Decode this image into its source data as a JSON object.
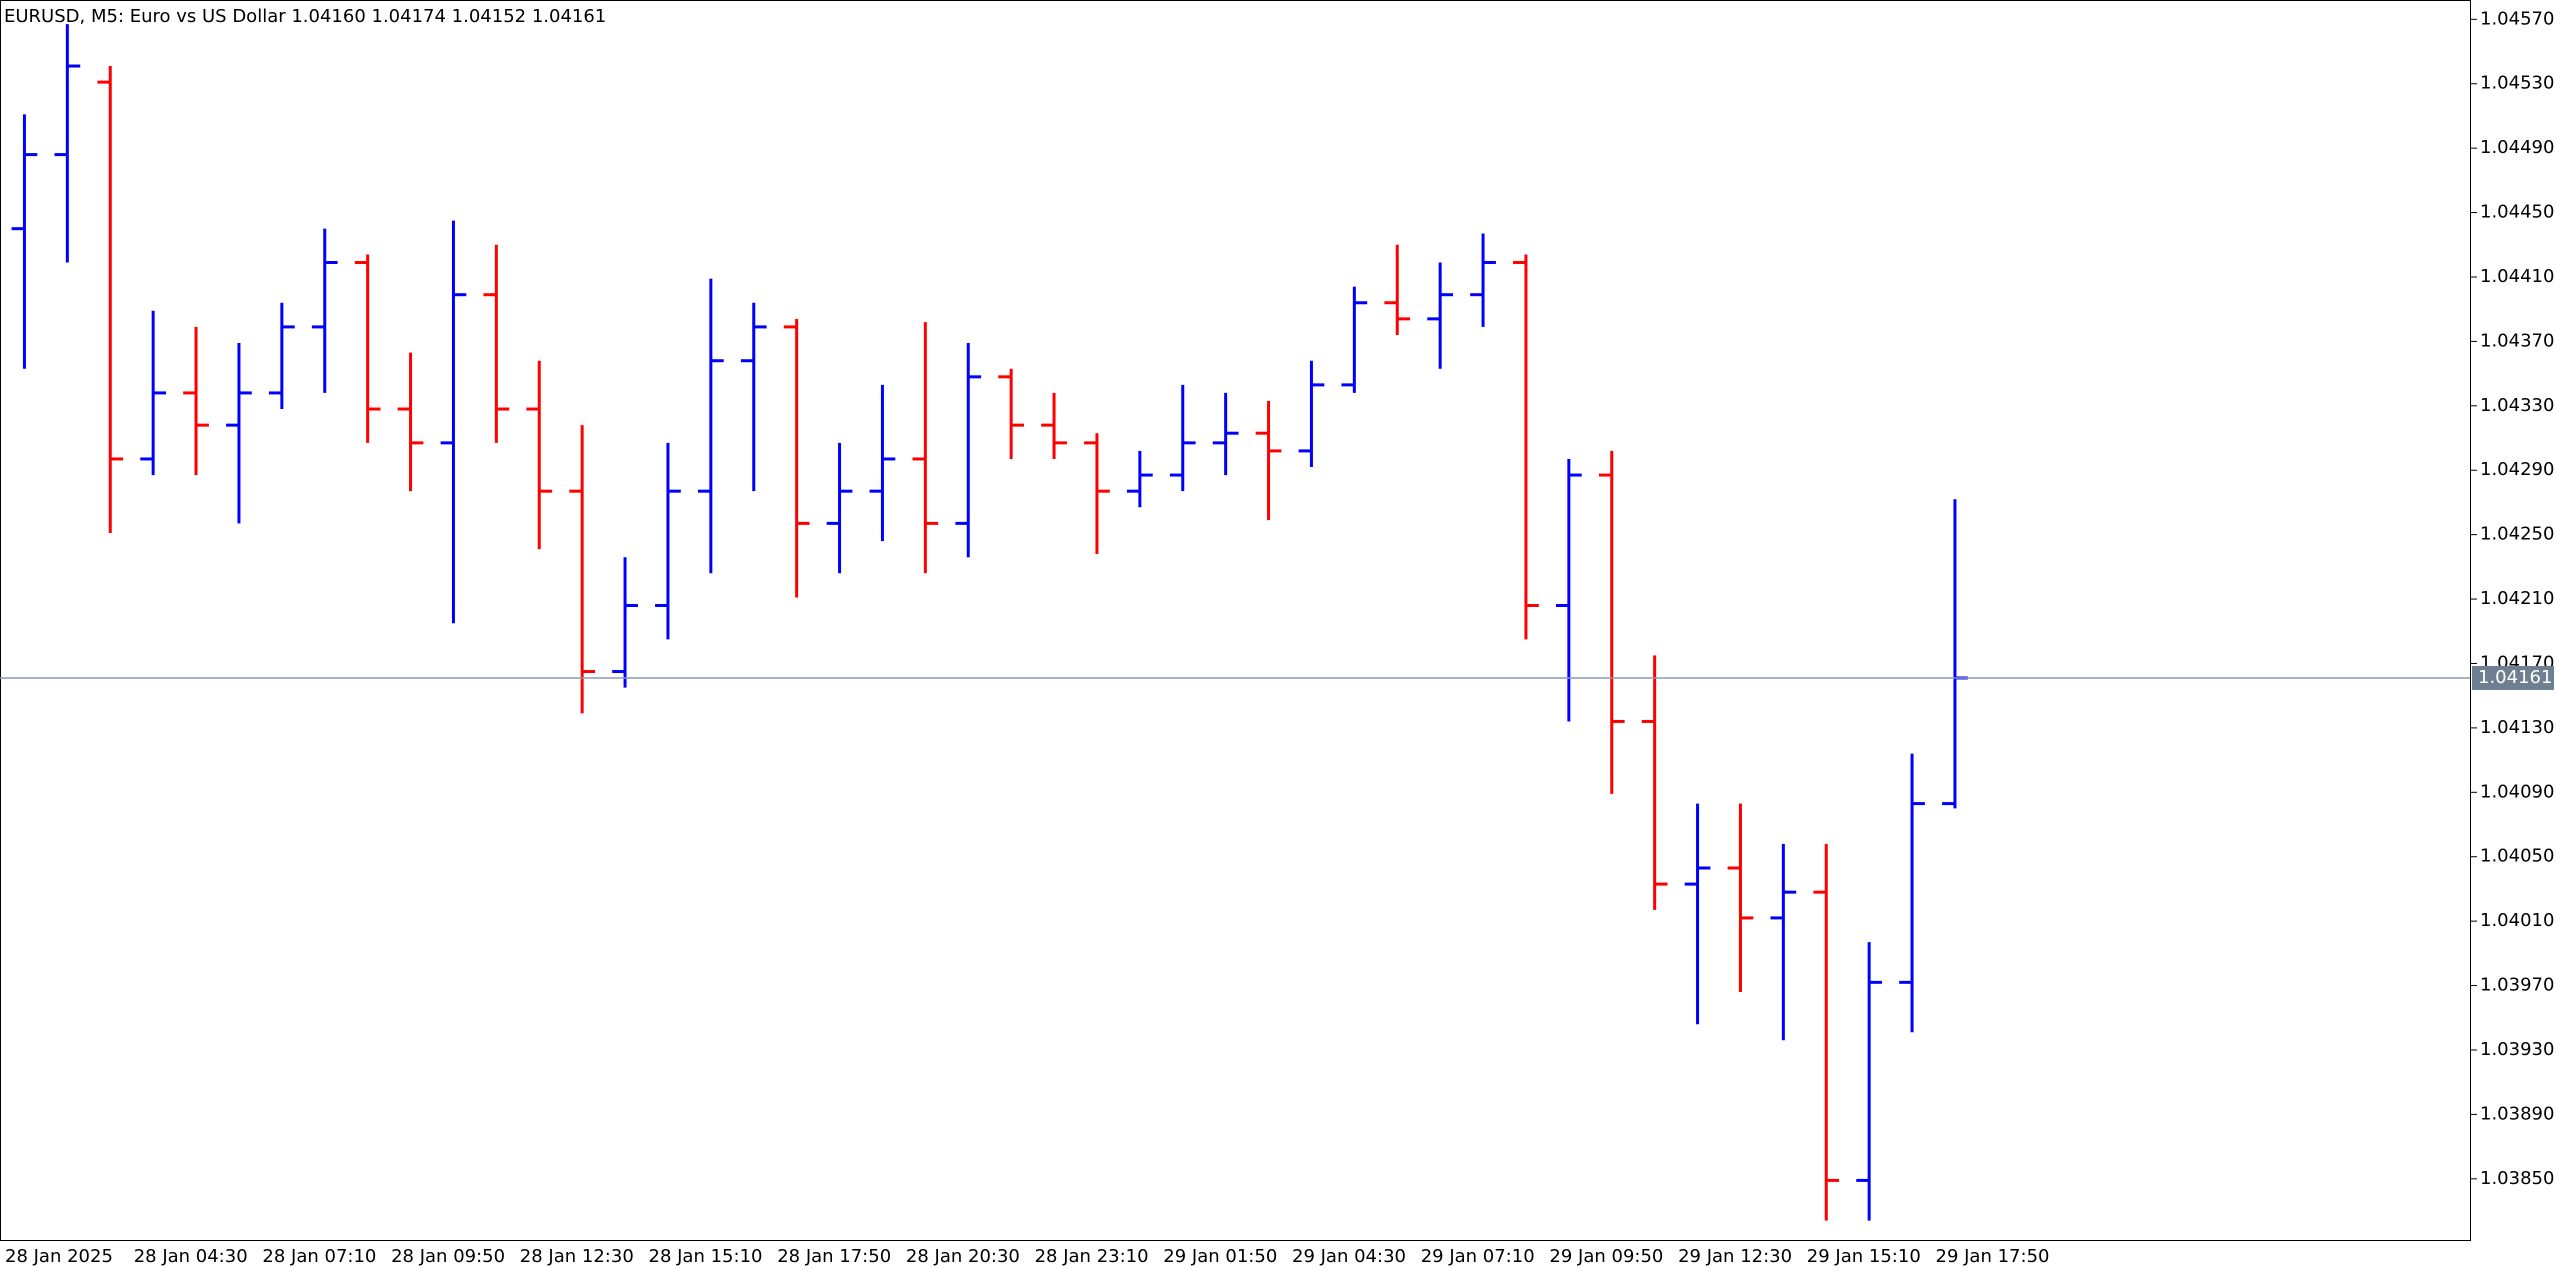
{
  "chart_data": {
    "type": "ohlc",
    "title": "EURUSD, M5:  Euro vs US Dollar  1.04160 1.04174 1.04152 1.04161",
    "categories": [
      "28 Jan 2025",
      null,
      null,
      "28 Jan 04:30",
      null,
      null,
      "28 Jan 07:10",
      null,
      null,
      "28 Jan 09:50",
      null,
      null,
      "28 Jan 12:30",
      null,
      null,
      "28 Jan 15:10",
      null,
      null,
      "28 Jan 17:50",
      null,
      null,
      "28 Jan 20:30",
      null,
      null,
      "28 Jan 23:10",
      null,
      null,
      "29 Jan 01:50",
      null,
      null,
      "29 Jan 04:30",
      null,
      null,
      "29 Jan 07:10",
      null,
      null,
      "29 Jan 09:50",
      null,
      null,
      "29 Jan 12:30",
      null,
      null,
      "29 Jan 15:10",
      null,
      null,
      "29 Jan 17:50"
    ],
    "open": [
      1.0444,
      1.04486,
      1.04531,
      1.04297,
      1.04338,
      1.04318,
      1.04338,
      1.04379,
      1.04419,
      1.04328,
      1.04307,
      1.04399,
      1.04328,
      1.04277,
      1.04165,
      1.04206,
      1.04277,
      1.04358,
      1.04379,
      1.04257,
      1.04277,
      1.04297,
      1.04257,
      1.04348,
      1.04318,
      1.04307,
      1.04277,
      1.04287,
      1.04307,
      1.04313,
      1.04302,
      1.04343,
      1.04394,
      1.04384,
      1.04399,
      1.04419,
      1.04206,
      1.04287,
      1.04134,
      1.04033,
      1.04043,
      1.04012,
      1.04028,
      1.03849,
      1.03972,
      1.04083
    ],
    "high": [
      1.04511,
      1.04567,
      1.04541,
      1.04389,
      1.04379,
      1.04369,
      1.04394,
      1.0444,
      1.04424,
      1.04363,
      1.04445,
      1.0443,
      1.04358,
      1.04318,
      1.04236,
      1.04307,
      1.04409,
      1.04394,
      1.04384,
      1.04307,
      1.04343,
      1.04382,
      1.04369,
      1.04353,
      1.04338,
      1.04313,
      1.04302,
      1.04343,
      1.04338,
      1.04333,
      1.04358,
      1.04404,
      1.0443,
      1.04419,
      1.04437,
      1.04424,
      1.04297,
      1.04302,
      1.04175,
      1.04083,
      1.04083,
      1.04058,
      1.04058,
      1.03997,
      1.04114,
      1.04272
    ],
    "low": [
      1.04353,
      1.04419,
      1.04251,
      1.04287,
      1.04287,
      1.04257,
      1.04328,
      1.04338,
      1.04307,
      1.04277,
      1.04195,
      1.04307,
      1.04241,
      1.04139,
      1.04155,
      1.04185,
      1.04226,
      1.04277,
      1.04211,
      1.04226,
      1.04246,
      1.04226,
      1.04236,
      1.04297,
      1.04297,
      1.04238,
      1.04267,
      1.04277,
      1.04287,
      1.04259,
      1.04292,
      1.04338,
      1.04374,
      1.04353,
      1.04379,
      1.04185,
      1.04134,
      1.04089,
      1.04017,
      1.03946,
      1.03966,
      1.03936,
      1.03824,
      1.03824,
      1.03941,
      1.0408
    ],
    "close": [
      1.04486,
      1.04541,
      1.04297,
      1.04338,
      1.04318,
      1.04338,
      1.04379,
      1.04419,
      1.04328,
      1.04307,
      1.04399,
      1.04328,
      1.04277,
      1.04165,
      1.04206,
      1.04277,
      1.04358,
      1.04379,
      1.04257,
      1.04277,
      1.04297,
      1.04257,
      1.04348,
      1.04318,
      1.04307,
      1.04277,
      1.04287,
      1.04307,
      1.04313,
      1.04302,
      1.04343,
      1.04394,
      1.04384,
      1.04399,
      1.04419,
      1.04206,
      1.04287,
      1.04134,
      1.04033,
      1.04043,
      1.04012,
      1.04028,
      1.03849,
      1.03972,
      1.04083,
      1.04161
    ],
    "up_color": "#0000ff",
    "down_color": "#ff0000",
    "current_price": 1.04161,
    "price_line_color": "#8a9bb4",
    "ylim": [
      1.03812,
      1.04582
    ],
    "yticks": [
      {
        "value": 1.0457,
        "label": "1.04570"
      },
      {
        "value": 1.0453,
        "label": "1.04530"
      },
      {
        "value": 1.0449,
        "label": "1.04490"
      },
      {
        "value": 1.0445,
        "label": "1.04450"
      },
      {
        "value": 1.0441,
        "label": "1.04410"
      },
      {
        "value": 1.0437,
        "label": "1.04370"
      },
      {
        "value": 1.0433,
        "label": "1.04330"
      },
      {
        "value": 1.0429,
        "label": "1.04290"
      },
      {
        "value": 1.0425,
        "label": "1.04250"
      },
      {
        "value": 1.0421,
        "label": "1.04210"
      },
      {
        "value": 1.0417,
        "label": "1.04170"
      },
      {
        "value": 1.0413,
        "label": "1.04130"
      },
      {
        "value": 1.0409,
        "label": "1.04090"
      },
      {
        "value": 1.0405,
        "label": "1.04050"
      },
      {
        "value": 1.0401,
        "label": "1.04010"
      },
      {
        "value": 1.0397,
        "label": "1.03970"
      },
      {
        "value": 1.0393,
        "label": "1.03930"
      },
      {
        "value": 1.0389,
        "label": "1.03890"
      },
      {
        "value": 1.0385,
        "label": "1.03850"
      }
    ]
  }
}
